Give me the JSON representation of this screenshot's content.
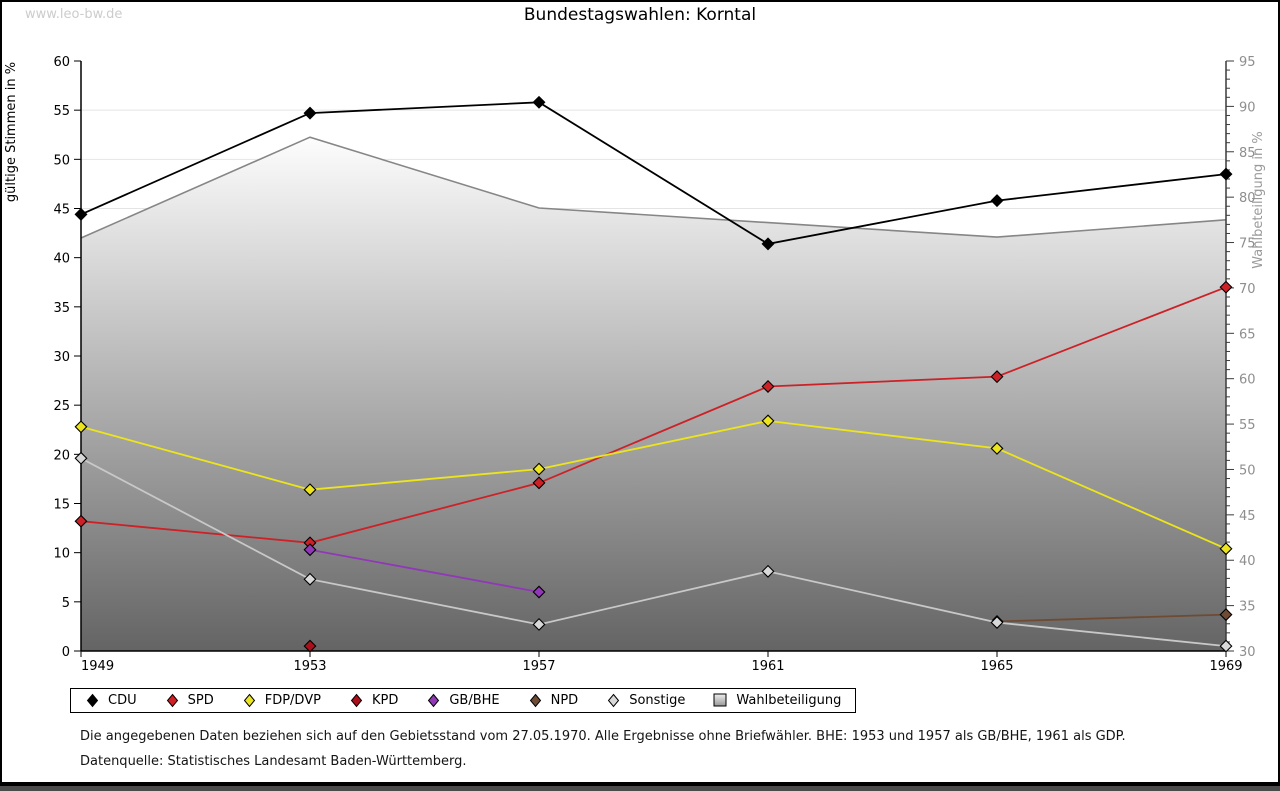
{
  "page": {
    "watermark": "www.leo-bw.de",
    "title": "Bundestagswahlen: Korntal",
    "footnote1": "Die angegebenen Daten beziehen sich auf den Gebietsstand vom 27.05.1970. Alle Ergebnisse ohne Briefwähler. BHE: 1953 und 1957 als GB/BHE, 1961 als GDP.",
    "footnote2": "Datenquelle: Statistisches Landesamt Baden-Württemberg."
  },
  "chart_data": {
    "type": "line",
    "title": "Bundestagswahlen: Korntal",
    "x": [
      1949,
      1953,
      1957,
      1961,
      1965,
      1969
    ],
    "ylabel_left": "gültige Stimmen in %",
    "ylabel_right": "Wahlbeteiligung in %",
    "ylim_left": [
      0,
      60
    ],
    "ytick_step_left": 5,
    "ylim_right": [
      30,
      95
    ],
    "ytick_step_right": 5,
    "ytick_minor_step_right": 1,
    "grid": "horizontal gridlines at left-axis multiples of 5",
    "legend_position": "bottom",
    "series": [
      {
        "name": "CDU",
        "axis": "left",
        "color": "#000000",
        "values": [
          44.4,
          54.7,
          55.8,
          41.4,
          45.8,
          48.5
        ]
      },
      {
        "name": "SPD",
        "axis": "left",
        "color": "#cc2127",
        "values": [
          13.2,
          11.0,
          17.1,
          26.9,
          27.9,
          37.0
        ]
      },
      {
        "name": "FDP/DVP",
        "axis": "left",
        "color": "#ece41c",
        "values": [
          22.8,
          16.4,
          18.5,
          23.4,
          20.6,
          10.4
        ]
      },
      {
        "name": "KPD",
        "axis": "left",
        "color": "#a8101c",
        "values": [
          null,
          0.5,
          null,
          null,
          null,
          null
        ]
      },
      {
        "name": "GB/BHE",
        "axis": "left",
        "color": "#9138b8",
        "values": [
          null,
          10.3,
          6.0,
          null,
          null,
          null
        ]
      },
      {
        "name": "NPD",
        "axis": "left",
        "color": "#6f4b33",
        "values": [
          null,
          null,
          null,
          null,
          3.0,
          3.7
        ]
      },
      {
        "name": "Sonstige",
        "axis": "left",
        "color": "#c8c8c8",
        "marker_fill": "#d8d8d8",
        "values": [
          19.6,
          7.3,
          2.7,
          8.1,
          2.9,
          0.5
        ]
      },
      {
        "name": "Wahlbeteiligung",
        "axis": "right",
        "type": "area",
        "color": "#868686",
        "area_gradient_top": "#fdfdfd",
        "area_gradient_bottom": "#646464",
        "values": [
          75.5,
          86.6,
          78.8,
          77.2,
          75.6,
          77.5
        ]
      }
    ],
    "colors": {
      "grid": "#e4e4e4",
      "axis": "#000000",
      "right_axis_ticks": "#3a3a3a",
      "right_axis_text": "#8e8e8e",
      "left_axis_text": "#000000"
    }
  }
}
